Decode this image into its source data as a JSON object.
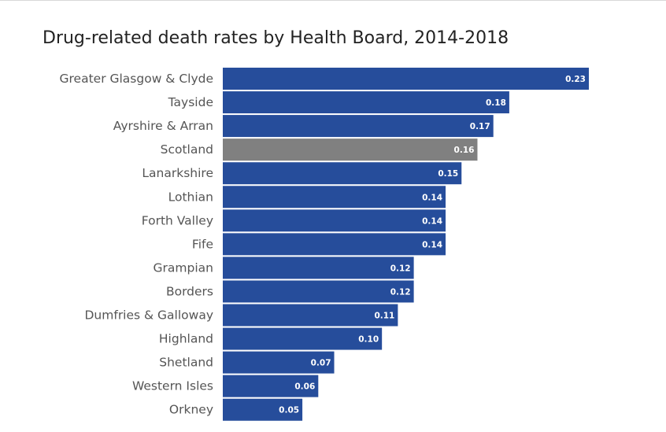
{
  "chart_data": {
    "type": "bar",
    "orientation": "horizontal",
    "title": "Drug-related death rates by Health Board, 2014-2018",
    "xlabel": "",
    "ylabel": "",
    "xlim": [
      0,
      0.23
    ],
    "grid": false,
    "legend": "none",
    "categories": [
      "Greater Glasgow & Clyde",
      "Tayside",
      "Ayrshire & Arran",
      "Scotland",
      "Lanarkshire",
      "Lothian",
      "Forth Valley",
      "Fife",
      "Grampian",
      "Borders",
      "Dumfries & Galloway",
      "Highland",
      "Shetland",
      "Western Isles",
      "Orkney"
    ],
    "values": [
      0.23,
      0.18,
      0.17,
      0.16,
      0.15,
      0.14,
      0.14,
      0.14,
      0.12,
      0.12,
      0.11,
      0.1,
      0.07,
      0.06,
      0.05
    ],
    "value_labels": [
      "0.23",
      "0.18",
      "0.17",
      "0.16",
      "0.15",
      "0.14",
      "0.14",
      "0.14",
      "0.12",
      "0.12",
      "0.11",
      "0.10",
      "0.07",
      "0.06",
      "0.05"
    ],
    "highlight_category": "Scotland",
    "colors": {
      "bar": "#264d9b",
      "highlight": "#808080",
      "value_label": "#ffffff",
      "category_label": "#555555"
    }
  }
}
